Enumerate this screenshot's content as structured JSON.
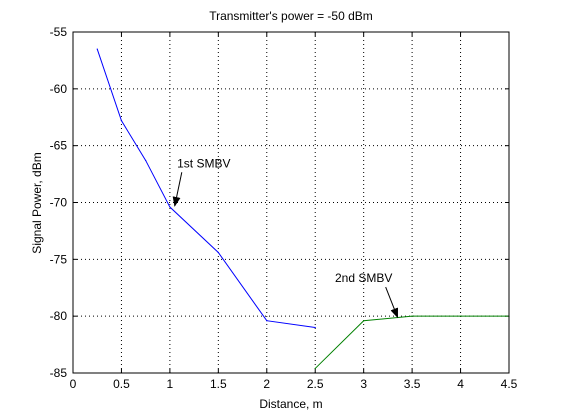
{
  "chart_data": {
    "type": "line",
    "title": "Transmitter's power = -50 dBm",
    "xlabel": "Distance, m",
    "ylabel": "Signal Power, dBm",
    "xlim": [
      0,
      4.5
    ],
    "ylim": [
      -85,
      -55
    ],
    "xticks": [
      "0",
      "0.5",
      "1",
      "1.5",
      "2",
      "2.5",
      "3",
      "3.5",
      "4",
      "4.5"
    ],
    "yticks": [
      "-55",
      "-60",
      "-65",
      "-70",
      "-75",
      "-80",
      "-85"
    ],
    "grid": true,
    "series": [
      {
        "color": "#0000ff",
        "x": [
          0.25,
          0.5,
          0.75,
          1.0,
          1.5,
          2.0,
          2.5
        ],
        "y": [
          -56.5,
          -62.8,
          -66.3,
          -70.4,
          -74.4,
          -80.4,
          -81.0
        ]
      },
      {
        "color": "#008000",
        "x": [
          2.5,
          3.0,
          3.5,
          4.0,
          4.5
        ],
        "y": [
          -84.6,
          -80.4,
          -80.0,
          -80.0,
          -80.0
        ]
      }
    ],
    "annotations": [
      {
        "text": "1st SMBV",
        "target": [
          1.05,
          -70.3
        ],
        "label_at": [
          1.35,
          -66.9
        ]
      },
      {
        "text": "2nd SMBV",
        "target": [
          3.35,
          -80.1
        ],
        "label_at": [
          3.0,
          -77.0
        ]
      }
    ]
  }
}
